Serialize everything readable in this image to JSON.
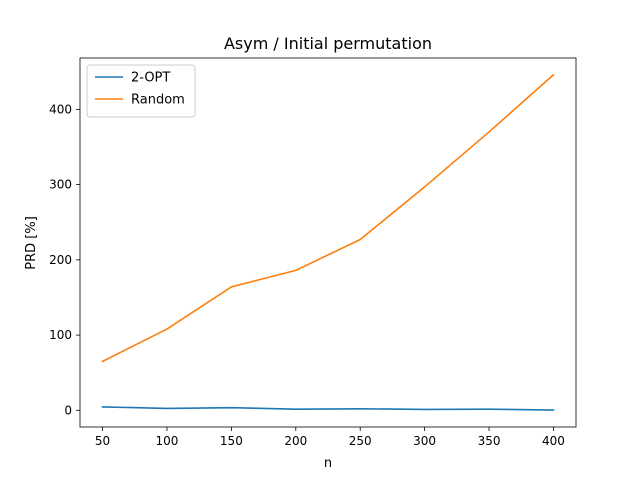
{
  "chart_data": {
    "type": "line",
    "title": "Asym / Initial permutation",
    "xlabel": "n",
    "ylabel": "PRD [%]",
    "x": [
      50,
      100,
      150,
      200,
      250,
      300,
      350,
      400
    ],
    "xticks": [
      "50",
      "100",
      "150",
      "200",
      "250",
      "300",
      "350",
      "400"
    ],
    "yticks": [
      "0",
      "100",
      "200",
      "300",
      "400"
    ],
    "xlim": [
      32.5,
      417.5
    ],
    "ylim": [
      -22.2,
      468.3
    ],
    "grid": false,
    "legend_position": "top-left",
    "series": [
      {
        "name": "2-OPT",
        "color": "#1f77b4",
        "values": [
          4.5,
          2.5,
          3.5,
          1.5,
          2.0,
          1.2,
          1.5,
          0.3
        ]
      },
      {
        "name": "Random",
        "color": "#ff7f0e",
        "values": [
          65,
          108,
          164,
          186,
          227,
          297,
          370,
          446
        ]
      }
    ]
  }
}
